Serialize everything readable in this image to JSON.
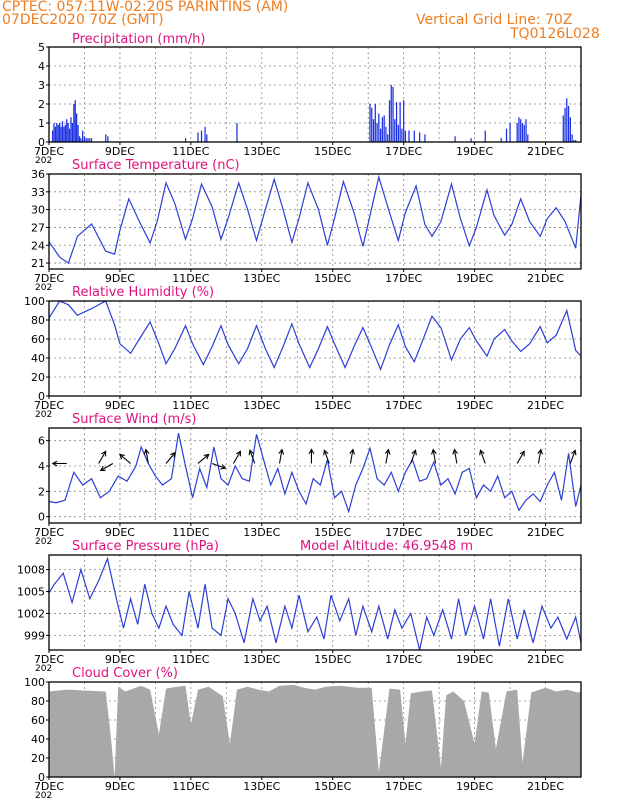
{
  "header": {
    "line1": "CPTEC:   057:11W-02:20S   PARINTINS (AM)",
    "line2": "07DEC2020 70Z (GMT)",
    "right1": "Vertical Grid Line: 70Z",
    "right2": "TQ0126L028"
  },
  "x_tick_labels": [
    "7DEC",
    "9DEC",
    "11DEC",
    "13DEC",
    "15DEC",
    "17DEC",
    "19DEC",
    "21DEC"
  ],
  "year_stub": "202",
  "colors": {
    "header": "#ee7e22",
    "title": "#e0127f",
    "line": "#2b3fd6",
    "bar": "#1a2fe0",
    "cloud": "#a8a8a8",
    "grid": "#888888"
  },
  "chart_data": [
    {
      "id": "precip",
      "type": "bar",
      "title": "Precipitation (mm/h)",
      "ylim": [
        0,
        5
      ],
      "yticks": [
        "0",
        "1",
        "2",
        "3",
        "4",
        "5"
      ],
      "x": [
        7.1,
        7.14,
        7.18,
        7.22,
        7.26,
        7.3,
        7.34,
        7.38,
        7.42,
        7.46,
        7.5,
        7.54,
        7.58,
        7.62,
        7.66,
        7.7,
        7.74,
        7.78,
        7.82,
        7.86,
        7.9,
        7.95,
        8.0,
        8.05,
        8.1,
        8.15,
        8.2,
        8.6,
        8.66,
        10.85,
        11.2,
        11.3,
        11.4,
        11.45,
        12.3,
        16.05,
        16.1,
        16.15,
        16.2,
        16.25,
        16.3,
        16.35,
        16.4,
        16.45,
        16.5,
        16.55,
        16.6,
        16.65,
        16.7,
        16.75,
        16.8,
        16.85,
        16.9,
        16.95,
        17.0,
        17.05,
        17.15,
        17.3,
        17.45,
        17.6,
        18.45,
        18.9,
        19.3,
        19.75,
        19.9,
        20.0,
        20.2,
        20.25,
        20.3,
        20.35,
        20.4,
        20.45,
        20.5,
        21.5,
        21.55,
        21.6,
        21.65,
        21.7,
        21.75,
        21.8,
        21.85
      ],
      "values": [
        0.6,
        1.0,
        0.8,
        1.0,
        0.9,
        1.0,
        0.8,
        1.1,
        0.8,
        0.9,
        1.2,
        1.0,
        0.7,
        1.3,
        1.0,
        2.0,
        2.2,
        1.5,
        0.9,
        0.3,
        0.2,
        0.6,
        0.3,
        0.2,
        0.2,
        0.2,
        0.2,
        0.4,
        0.3,
        0.2,
        0.5,
        0.6,
        0.8,
        0.4,
        1.0,
        2.0,
        1.8,
        1.2,
        2.0,
        1.0,
        1.5,
        0.7,
        1.3,
        1.4,
        0.8,
        0.4,
        2.2,
        3.0,
        2.9,
        1.2,
        2.1,
        0.9,
        2.1,
        0.7,
        2.2,
        0.6,
        0.6,
        0.6,
        0.5,
        0.4,
        0.3,
        0.2,
        0.6,
        0.2,
        0.7,
        1.0,
        1.0,
        1.3,
        1.2,
        1.0,
        0.9,
        1.2,
        0.4,
        1.4,
        1.8,
        2.3,
        1.9,
        1.3,
        0.4,
        0.1,
        0.1
      ]
    },
    {
      "id": "temp",
      "type": "line",
      "title": "Surface Temperature (nC)",
      "ylim": [
        20,
        36
      ],
      "yticks": [
        "21",
        "24",
        "27",
        "30",
        "33",
        "36"
      ],
      "x": [
        7.0,
        7.3,
        7.55,
        7.8,
        8.2,
        8.6,
        8.85,
        9.0,
        9.25,
        9.55,
        9.85,
        10.05,
        10.3,
        10.55,
        10.85,
        11.05,
        11.3,
        11.6,
        11.85,
        12.05,
        12.35,
        12.6,
        12.85,
        13.05,
        13.35,
        13.6,
        13.85,
        14.05,
        14.3,
        14.6,
        14.85,
        15.05,
        15.3,
        15.6,
        15.85,
        16.05,
        16.3,
        16.6,
        16.85,
        17.05,
        17.35,
        17.6,
        17.8,
        18.05,
        18.35,
        18.6,
        18.85,
        19.05,
        19.35,
        19.55,
        19.85,
        20.05,
        20.3,
        20.55,
        20.85,
        21.05,
        21.3,
        21.55,
        21.85,
        22.0
      ],
      "values": [
        24.6,
        22.0,
        21.0,
        25.5,
        27.6,
        23.0,
        22.5,
        26.5,
        31.8,
        28.0,
        24.4,
        28.0,
        34.5,
        31.0,
        25.0,
        28.5,
        34.3,
        30.5,
        25.0,
        28.5,
        34.5,
        30.0,
        24.8,
        29.0,
        35.1,
        30.0,
        24.5,
        28.5,
        34.5,
        30.0,
        24.0,
        28.5,
        34.7,
        29.5,
        23.8,
        29.0,
        35.5,
        29.5,
        24.8,
        29.5,
        34.0,
        27.5,
        25.5,
        28.0,
        34.3,
        28.5,
        23.9,
        27.0,
        33.3,
        29.0,
        25.7,
        27.5,
        31.8,
        28.0,
        25.5,
        28.5,
        30.3,
        28.0,
        23.5,
        32.5
      ],
      "extra_x": [
        21.92,
        22.0
      ],
      "extra_y": [
        33.2,
        32.8
      ]
    },
    {
      "id": "rh",
      "type": "line",
      "title": "Relative Humidity (%)",
      "ylim": [
        0,
        100
      ],
      "yticks": [
        "0",
        "20",
        "40",
        "60",
        "80",
        "100"
      ],
      "x": [
        7.0,
        7.3,
        7.55,
        7.8,
        8.2,
        8.6,
        8.85,
        9.0,
        9.3,
        9.55,
        9.85,
        10.1,
        10.3,
        10.55,
        10.85,
        11.05,
        11.35,
        11.6,
        11.85,
        12.05,
        12.35,
        12.6,
        12.85,
        13.1,
        13.35,
        13.6,
        13.85,
        14.05,
        14.35,
        14.6,
        14.85,
        15.05,
        15.35,
        15.6,
        15.85,
        16.05,
        16.35,
        16.6,
        16.85,
        17.05,
        17.3,
        17.55,
        17.8,
        18.05,
        18.35,
        18.6,
        18.85,
        19.05,
        19.35,
        19.55,
        19.85,
        20.05,
        20.3,
        20.55,
        20.85,
        21.05,
        21.3,
        21.6,
        21.85,
        22.0
      ],
      "values": [
        82,
        100,
        96,
        85,
        92,
        100,
        75,
        55,
        45,
        60,
        78,
        55,
        34,
        50,
        74,
        55,
        33,
        52,
        74,
        54,
        34,
        50,
        74,
        50,
        30,
        52,
        76,
        55,
        30,
        50,
        73,
        55,
        30,
        52,
        72,
        55,
        28,
        54,
        75,
        52,
        36,
        60,
        84,
        72,
        38,
        60,
        72,
        58,
        42,
        60,
        70,
        58,
        47,
        55,
        73,
        56,
        64,
        90,
        48,
        42
      ]
    },
    {
      "id": "wind",
      "type": "line",
      "title": "Surface Wind (m/s)",
      "ylim": [
        -0.5,
        7
      ],
      "yticks": [
        "0",
        "2",
        "4",
        "6"
      ],
      "x": [
        7.0,
        7.2,
        7.45,
        7.7,
        7.95,
        8.2,
        8.45,
        8.7,
        8.95,
        9.2,
        9.45,
        9.6,
        9.8,
        10.0,
        10.2,
        10.45,
        10.65,
        10.85,
        11.05,
        11.25,
        11.45,
        11.65,
        11.85,
        12.05,
        12.25,
        12.45,
        12.65,
        12.85,
        13.05,
        13.25,
        13.45,
        13.65,
        13.85,
        14.05,
        14.25,
        14.45,
        14.65,
        14.85,
        15.05,
        15.25,
        15.45,
        15.65,
        15.85,
        16.05,
        16.25,
        16.45,
        16.65,
        16.85,
        17.05,
        17.25,
        17.45,
        17.65,
        17.85,
        18.05,
        18.25,
        18.45,
        18.65,
        18.85,
        19.05,
        19.25,
        19.45,
        19.65,
        19.85,
        20.05,
        20.25,
        20.45,
        20.65,
        20.85,
        21.05,
        21.25,
        21.45,
        21.65,
        21.85,
        22.0
      ],
      "values": [
        1.2,
        1.1,
        1.3,
        3.5,
        2.5,
        3.0,
        1.5,
        2.0,
        3.2,
        2.8,
        4.0,
        5.5,
        4.2,
        3.2,
        2.5,
        3.0,
        6.6,
        4.0,
        1.5,
        3.8,
        2.3,
        5.5,
        3.0,
        2.5,
        4.0,
        3.0,
        2.8,
        6.5,
        4.5,
        2.5,
        3.8,
        1.8,
        3.5,
        2.0,
        1.0,
        3.0,
        2.5,
        4.5,
        1.5,
        2.0,
        0.4,
        2.5,
        3.8,
        5.4,
        3.0,
        2.5,
        3.5,
        2.0,
        3.5,
        4.5,
        2.8,
        3.0,
        4.3,
        2.5,
        3.0,
        1.8,
        3.5,
        3.8,
        1.5,
        2.5,
        2.0,
        3.2,
        1.5,
        2.0,
        0.5,
        1.3,
        1.8,
        1.2,
        2.5,
        3.5,
        1.3,
        5.0,
        0.8,
        2.5
      ],
      "arrows": [
        {
          "x": 7.5,
          "a": 180
        },
        {
          "x": 8.4,
          "a": -60
        },
        {
          "x": 8.8,
          "a": 150
        },
        {
          "x": 9.3,
          "a": -140
        },
        {
          "x": 9.8,
          "a": -100
        },
        {
          "x": 10.3,
          "a": -50
        },
        {
          "x": 11.2,
          "a": -40
        },
        {
          "x": 11.6,
          "a": 20
        },
        {
          "x": 12.2,
          "a": -60
        },
        {
          "x": 12.8,
          "a": -110
        },
        {
          "x": 13.5,
          "a": -80
        },
        {
          "x": 14.4,
          "a": -90
        },
        {
          "x": 14.9,
          "a": -110
        },
        {
          "x": 15.5,
          "a": -80
        },
        {
          "x": 16.5,
          "a": -80
        },
        {
          "x": 17.2,
          "a": -70
        },
        {
          "x": 17.9,
          "a": -100
        },
        {
          "x": 18.5,
          "a": -100
        },
        {
          "x": 19.3,
          "a": -110
        },
        {
          "x": 20.2,
          "a": -60
        },
        {
          "x": 20.8,
          "a": -80
        },
        {
          "x": 21.7,
          "a": -70
        }
      ]
    },
    {
      "id": "pres",
      "type": "line",
      "title": "Surface Pressure (hPa)",
      "subtitle": "Model Altitude: 46.9548 m",
      "ylim": [
        997,
        1010
      ],
      "yticks": [
        "999",
        "1002",
        "1005",
        "1008"
      ],
      "x": [
        7.0,
        7.15,
        7.4,
        7.65,
        7.9,
        8.15,
        8.4,
        8.65,
        8.9,
        9.1,
        9.3,
        9.5,
        9.7,
        9.9,
        10.1,
        10.3,
        10.5,
        10.75,
        10.95,
        11.2,
        11.4,
        11.6,
        11.85,
        12.05,
        12.25,
        12.5,
        12.75,
        12.95,
        13.15,
        13.4,
        13.65,
        13.85,
        14.05,
        14.3,
        14.55,
        14.75,
        14.95,
        15.2,
        15.45,
        15.65,
        15.85,
        16.1,
        16.3,
        16.55,
        16.75,
        16.95,
        17.2,
        17.45,
        17.65,
        17.85,
        18.1,
        18.35,
        18.55,
        18.75,
        19.0,
        19.25,
        19.45,
        19.7,
        19.95,
        20.2,
        20.4,
        20.65,
        20.9,
        21.15,
        21.35,
        21.6,
        21.85,
        22.0
      ],
      "values": [
        1004.8,
        1006.0,
        1007.5,
        1003.5,
        1008.0,
        1004.0,
        1006.5,
        1009.5,
        1004.0,
        1000.0,
        1004.0,
        1000.5,
        1006.0,
        1002.0,
        1000.0,
        1003.0,
        1000.5,
        999.0,
        1005.0,
        1000.0,
        1006.0,
        1000.0,
        999.0,
        1004.0,
        1002.0,
        998.0,
        1004.0,
        1001.0,
        1003.0,
        998.0,
        1003.0,
        1000.0,
        1004.5,
        999.5,
        1001.5,
        998.5,
        1004.5,
        1001.0,
        1004.0,
        999.0,
        1003.0,
        999.5,
        1003.0,
        998.5,
        1002.5,
        1000.0,
        1002.0,
        997.0,
        1001.5,
        999.0,
        1002.5,
        998.5,
        1004.0,
        999.0,
        1003.0,
        998.5,
        1004.0,
        997.5,
        1004.0,
        998.5,
        1002.5,
        998.0,
        1003.0,
        1000.0,
        1001.5,
        998.5,
        1001.5,
        998.0
      ]
    },
    {
      "id": "cloud",
      "type": "area",
      "title": "Cloud Cover (%)",
      "ylim": [
        0,
        100
      ],
      "yticks": [
        "0",
        "20",
        "40",
        "60",
        "80",
        "100"
      ],
      "x": [
        7.0,
        7.5,
        8.0,
        8.6,
        8.75,
        8.85,
        8.95,
        9.15,
        9.6,
        9.85,
        10.1,
        10.3,
        10.6,
        10.85,
        11.0,
        11.2,
        11.5,
        11.9,
        12.1,
        12.3,
        12.6,
        12.9,
        13.2,
        13.5,
        13.9,
        14.2,
        14.5,
        14.8,
        15.2,
        15.7,
        16.1,
        16.3,
        16.6,
        16.9,
        17.05,
        17.2,
        17.5,
        17.8,
        18.05,
        18.2,
        18.4,
        18.7,
        19.0,
        19.2,
        19.4,
        19.6,
        19.9,
        20.2,
        20.35,
        20.6,
        21.0,
        21.3,
        21.6,
        21.9,
        22.0
      ],
      "values": [
        90,
        92,
        91,
        90,
        40,
        0,
        95,
        90,
        96,
        92,
        45,
        93,
        95,
        96,
        55,
        92,
        95,
        85,
        35,
        92,
        95,
        92,
        90,
        96,
        97,
        94,
        92,
        95,
        96,
        94,
        94,
        5,
        93,
        92,
        35,
        88,
        90,
        91,
        10,
        86,
        90,
        80,
        35,
        90,
        89,
        30,
        90,
        92,
        15,
        89,
        94,
        90,
        92,
        89,
        90
      ]
    }
  ]
}
